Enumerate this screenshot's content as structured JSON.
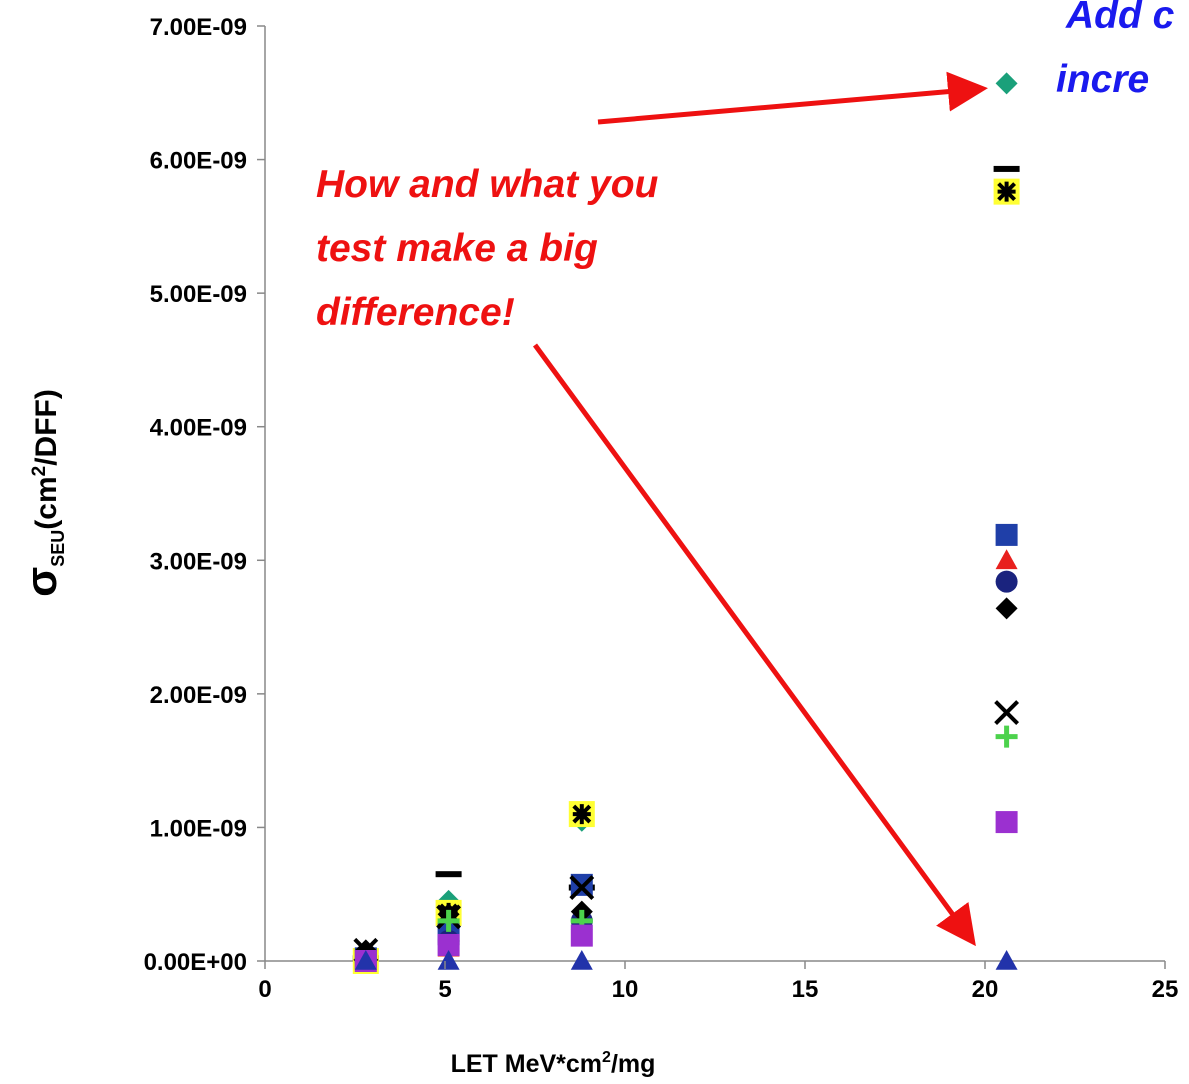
{
  "chart_data": {
    "type": "scatter",
    "x_label": [
      "LET MeV*cm",
      "2",
      "/mg"
    ],
    "y_label": [
      "σ",
      "SEU",
      "(cm",
      "2",
      "/DFF)"
    ],
    "annotations": [
      [
        "How and what you",
        "test make a big",
        "difference!"
      ],
      [
        "Add c",
        "incre"
      ]
    ],
    "x": [
      2.8,
      5.1,
      8.8,
      20.6
    ],
    "xlim": [
      0,
      25
    ],
    "xticks": [
      0,
      5,
      10,
      15,
      20,
      25
    ],
    "ylim": [
      0,
      7e-09
    ],
    "yticks": [
      {
        "value": 0,
        "label": "0.00E+00"
      },
      {
        "value": 1e-09,
        "label": "1.00E-09"
      },
      {
        "value": 2e-09,
        "label": "2.00E-09"
      },
      {
        "value": 3e-09,
        "label": "3.00E-09"
      },
      {
        "value": 4e-09,
        "label": "4.00E-09"
      },
      {
        "value": 5e-09,
        "label": "5.00E-09"
      },
      {
        "value": 6e-09,
        "label": "6.00E-09"
      },
      {
        "value": 7e-09,
        "label": "7.00E-09"
      }
    ],
    "series": [
      {
        "marker": "diamond",
        "color": "#1aa07a",
        "values": [
          5e-11,
          4.5e-10,
          1.05e-09,
          6.57e-09
        ]
      },
      {
        "marker": "dash",
        "color": "#000000",
        "values": [
          2e-11,
          6.5e-10,
          5.5e-10,
          5.93e-09
        ]
      },
      {
        "marker": "asterisk-square",
        "color": "#ffff33",
        "values": [
          0,
          3.6e-10,
          1.1e-09,
          5.76e-09
        ]
      },
      {
        "marker": "square",
        "color": "#1f3fa8",
        "values": [
          2e-11,
          2e-10,
          5.7e-10,
          3.19e-09
        ]
      },
      {
        "marker": "triangle",
        "color": "#e8201e",
        "values": [
          0,
          1e-10,
          3e-10,
          3e-09
        ]
      },
      {
        "marker": "circle",
        "color": "#1a237e",
        "values": [
          0,
          1.5e-10,
          3e-10,
          2.84e-09
        ]
      },
      {
        "marker": "diamond",
        "color": "#000000",
        "values": [
          8e-11,
          3.5e-10,
          3.7e-10,
          2.64e-09
        ]
      },
      {
        "marker": "x",
        "color": "#000000",
        "values": [
          8e-11,
          3.3e-10,
          5.5e-10,
          1.86e-09
        ]
      },
      {
        "marker": "plus",
        "color": "#4cd24c",
        "values": [
          0,
          3e-10,
          3e-10,
          1.68e-09
        ]
      },
      {
        "marker": "square",
        "color": "#9b30d0",
        "values": [
          0,
          1.2e-10,
          1.9e-10,
          1.04e-09
        ]
      },
      {
        "marker": "triangle",
        "color": "#2233aa",
        "values": [
          0,
          0,
          0,
          0
        ]
      }
    ]
  }
}
